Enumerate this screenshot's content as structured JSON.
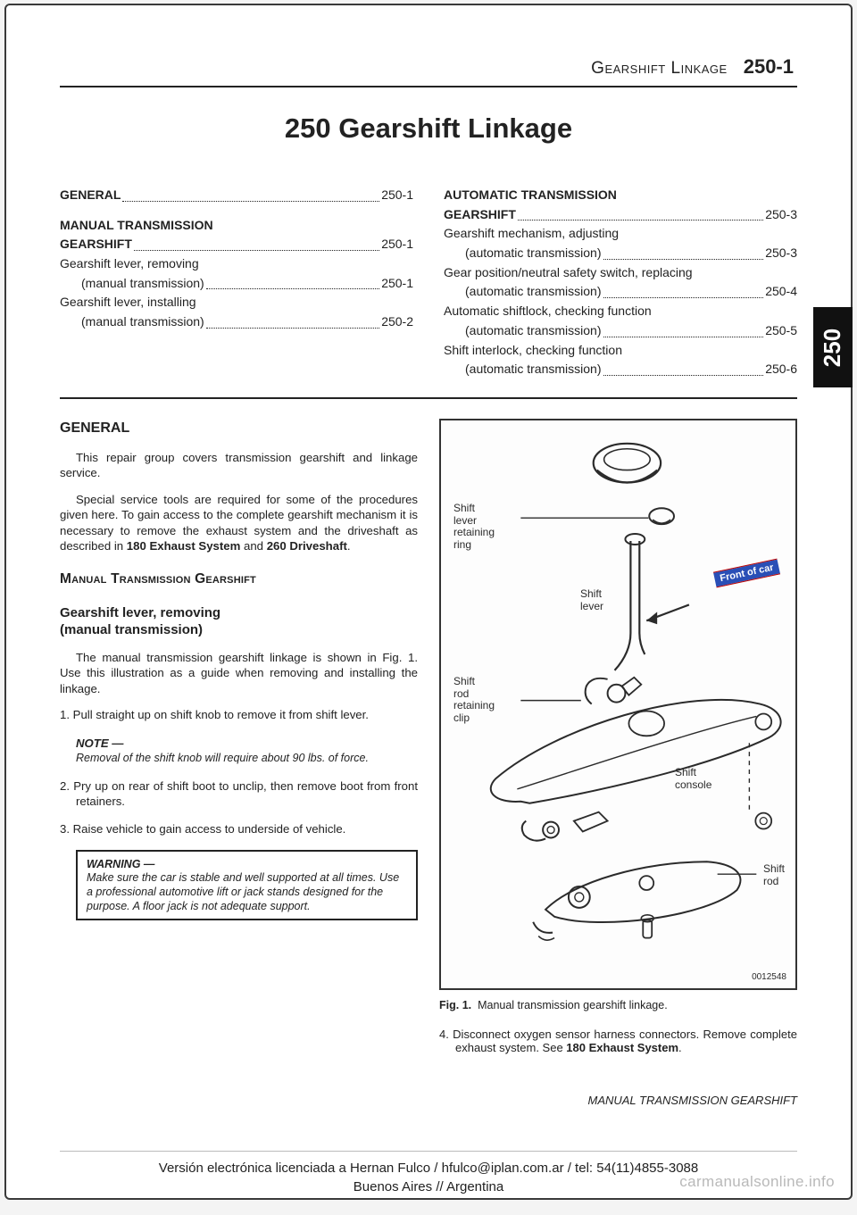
{
  "header": {
    "title": "Gearshift Linkage",
    "code": "250-1"
  },
  "main_title": "250 Gearshift Linkage",
  "tab": "250",
  "toc": {
    "left": [
      {
        "label": "GENERAL",
        "page": "250-1",
        "bold": true,
        "indent": 0
      },
      {
        "spacer": true
      },
      {
        "label": "MANUAL TRANSMISSION",
        "bold": true,
        "indent": 0,
        "nopage": true
      },
      {
        "label": "GEARSHIFT",
        "page": "250-1",
        "bold": true,
        "indent": 0
      },
      {
        "label": "Gearshift lever, removing",
        "indent": 1,
        "nopage": true
      },
      {
        "label": "(manual transmission)",
        "page": "250-1",
        "indent": 2
      },
      {
        "label": "Gearshift lever, installing",
        "indent": 1,
        "nopage": true
      },
      {
        "label": "(manual transmission)",
        "page": "250-2",
        "indent": 2
      }
    ],
    "right": [
      {
        "label": "AUTOMATIC TRANSMISSION",
        "bold": true,
        "indent": 0,
        "nopage": true
      },
      {
        "label": "GEARSHIFT",
        "page": "250-3",
        "bold": true,
        "indent": 0
      },
      {
        "label": "Gearshift mechanism, adjusting",
        "indent": 1,
        "nopage": true
      },
      {
        "label": "(automatic transmission)",
        "page": "250-3",
        "indent": 2
      },
      {
        "label": "Gear position/neutral safety switch, replacing",
        "indent": 1,
        "nopage": true
      },
      {
        "label": "(automatic transmission)",
        "page": "250-4",
        "indent": 2
      },
      {
        "label": "Automatic shiftlock, checking function",
        "indent": 1,
        "nopage": true
      },
      {
        "label": "(automatic transmission)",
        "page": "250-5",
        "indent": 2
      },
      {
        "label": "Shift interlock, checking function",
        "indent": 1,
        "nopage": true
      },
      {
        "label": "(automatic transmission)",
        "page": "250-6",
        "indent": 2
      }
    ]
  },
  "general": {
    "heading": "GENERAL",
    "p1": "This repair group covers transmission gearshift and linkage service.",
    "p2_a": "Special service tools are required for some of the procedures given here. To gain access to the complete gearshift mechanism it is necessary to remove the exhaust system and the driveshaft as described in ",
    "p2_b": "180 Exhaust System",
    "p2_c": " and ",
    "p2_d": "260 Driveshaft",
    "p2_e": "."
  },
  "mt": {
    "heading": "Manual Transmission Gearshift",
    "sub": "Gearshift lever, removing\n(manual transmission)",
    "intro": "The manual transmission gearshift linkage is shown in Fig. 1. Use this illustration as a guide when removing and installing the linkage.",
    "step1": "1. Pull straight up on shift knob to remove it from shift lever.",
    "note_hd": "NOTE —",
    "note_body": "Removal of the shift knob will require about 90 lbs. of force.",
    "step2": "2. Pry up on rear of shift boot to unclip, then remove boot from front retainers.",
    "step3": "3. Raise vehicle to gain access to underside of vehicle.",
    "warn_hd": "WARNING —",
    "warn_body": "Make sure the car is stable and well supported at all times. Use a professional automotive lift or jack stands designed for the purpose. A floor jack is not adequate support.",
    "step4_a": "4. Disconnect oxygen sensor harness connectors. Remove complete exhaust system. See ",
    "step4_b": "180 Exhaust System",
    "step4_c": "."
  },
  "figure": {
    "labels": {
      "shift_lever_ring": "Shift\nlever\nretaining\nring",
      "shift_lever": "Shift\nlever",
      "shift_rod_clip": "Shift\nrod\nretaining\nclip",
      "shift_console": "Shift\nconsole",
      "shift_rod": "Shift\nrod",
      "front_of_car": "Front of car",
      "id": "0012548"
    },
    "caption_b": "Fig. 1.",
    "caption": "Manual transmission gearshift linkage.",
    "colors": {
      "border": "#333333",
      "line": "#2b2b2b",
      "band_bg": "#2a4fb6",
      "band_txt": "#ffffff"
    }
  },
  "footer_right": "MANUAL TRANSMISSION GEARSHIFT",
  "license1": "Versión electrónica licenciada a Hernan Fulco / hfulco@iplan.com.ar / tel: 54(11)4855-3088",
  "license2": "Buenos Aires // Argentina",
  "watermark": "carmanualsonline.info"
}
